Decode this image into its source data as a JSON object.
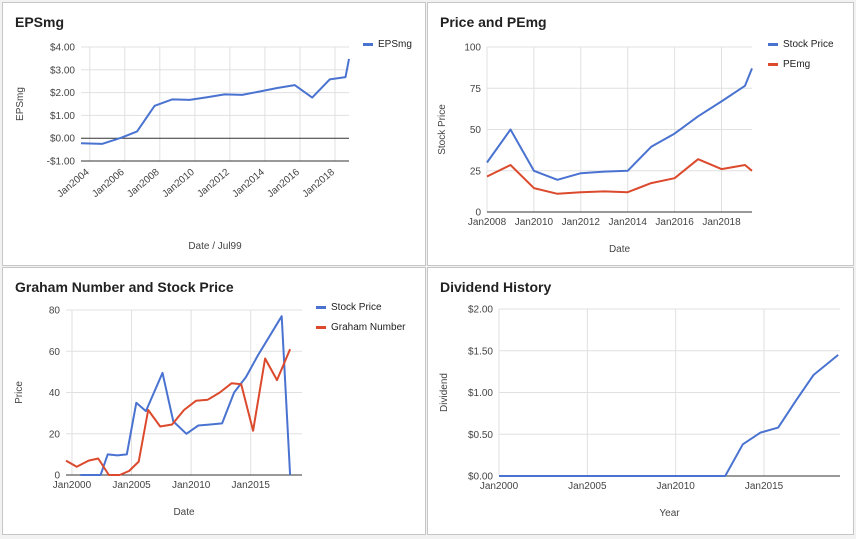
{
  "charts": [
    {
      "type": "line",
      "title": "EPSmg",
      "xlabel": "Date / Jul99",
      "ylabel": "EPSmg",
      "x_range": [
        2003.5,
        2018.8
      ],
      "ylim": [
        -1,
        4
      ],
      "x_ticks": [
        2004,
        2006,
        2008,
        2010,
        2012,
        2014,
        2016,
        2018
      ],
      "x_tick_labels": [
        "Jan2004",
        "Jan2006",
        "Jan2008",
        "Jan2010",
        "Jan2012",
        "Jan2014",
        "Jan2016",
        "Jan2018"
      ],
      "y_ticks": [
        -1,
        0,
        1,
        2,
        3,
        4
      ],
      "y_tick_labels": [
        "-$1.00",
        "$0.00",
        "$1.00",
        "$2.00",
        "$3.00",
        "$4.00"
      ],
      "zero_line": true,
      "legend": "right",
      "series": [
        {
          "name": "EPSmg",
          "color": "#4a73d1",
          "points": [
            [
              2003.5,
              -0.22
            ],
            [
              2004.7,
              -0.25
            ],
            [
              2005.8,
              0.02
            ],
            [
              2006.7,
              0.3
            ],
            [
              2007.7,
              1.42
            ],
            [
              2008.7,
              1.7
            ],
            [
              2009.7,
              1.68
            ],
            [
              2010.7,
              1.8
            ],
            [
              2011.7,
              1.92
            ],
            [
              2012.7,
              1.9
            ],
            [
              2013.7,
              2.05
            ],
            [
              2014.7,
              2.2
            ],
            [
              2015.7,
              2.33
            ],
            [
              2016.7,
              1.78
            ],
            [
              2017.7,
              2.58
            ],
            [
              2018.6,
              2.68
            ],
            [
              2018.8,
              3.48
            ]
          ]
        }
      ]
    },
    {
      "type": "line",
      "title": "Price and PEmg",
      "xlabel": "Date",
      "ylabel": "Stock Price",
      "x_range": [
        2008,
        2019.3
      ],
      "ylim": [
        0,
        100
      ],
      "x_ticks": [
        2008,
        2010,
        2012,
        2014,
        2016,
        2018
      ],
      "x_tick_labels": [
        "Jan2008",
        "Jan2010",
        "Jan2012",
        "Jan2014",
        "Jan2016",
        "Jan2018"
      ],
      "y_ticks": [
        0,
        25,
        50,
        75,
        100
      ],
      "y_tick_labels": [
        "0",
        "25",
        "50",
        "75",
        "100"
      ],
      "legend": "right",
      "series": [
        {
          "name": "Stock Price",
          "color": "#4a73d1",
          "points": [
            [
              2008,
              30
            ],
            [
              2009,
              50
            ],
            [
              2010,
              25
            ],
            [
              2011,
              19.5
            ],
            [
              2012,
              23.5
            ],
            [
              2013,
              24.5
            ],
            [
              2014,
              25
            ],
            [
              2015,
              39.5
            ],
            [
              2016,
              47.5
            ],
            [
              2017,
              58
            ],
            [
              2018,
              67
            ],
            [
              2019,
              76.5
            ],
            [
              2019.3,
              87
            ]
          ]
        },
        {
          "name": "PEmg",
          "color": "#dc4a2d",
          "points": [
            [
              2008,
              21.5
            ],
            [
              2009,
              28.5
            ],
            [
              2010,
              14.5
            ],
            [
              2011,
              11
            ],
            [
              2012,
              12
            ],
            [
              2013,
              12.5
            ],
            [
              2014,
              12
            ],
            [
              2015,
              17.5
            ],
            [
              2016,
              20.5
            ],
            [
              2017,
              32
            ],
            [
              2018,
              26
            ],
            [
              2019,
              28.5
            ],
            [
              2019.3,
              25
            ]
          ]
        }
      ]
    },
    {
      "type": "line",
      "title": "Graham Number and Stock Price",
      "xlabel": "Date",
      "ylabel": "Price",
      "x_range": [
        1999.5,
        2019.3
      ],
      "ylim": [
        0,
        80
      ],
      "x_ticks": [
        2000,
        2005,
        2010,
        2015
      ],
      "x_tick_labels": [
        "Jan2000",
        "Jan2005",
        "Jan2010",
        "Jan2015"
      ],
      "y_ticks": [
        0,
        20,
        40,
        60,
        80
      ],
      "y_tick_labels": [
        "0",
        "20",
        "40",
        "60",
        "80"
      ],
      "legend": "right",
      "series": [
        {
          "name": "Stock Price",
          "color": "#4a73d1",
          "points": [
            [
              2000.7,
              0
            ],
            [
              2002.4,
              0
            ],
            [
              2003.0,
              10
            ],
            [
              2003.8,
              9.5
            ],
            [
              2004.6,
              10
            ],
            [
              2005.4,
              35
            ],
            [
              2006.2,
              31
            ],
            [
              2007.6,
              49.5
            ],
            [
              2008.5,
              26
            ],
            [
              2009.6,
              20
            ],
            [
              2010.6,
              24
            ],
            [
              2011.6,
              24.5
            ],
            [
              2012.6,
              25
            ],
            [
              2013.6,
              40
            ],
            [
              2014.6,
              47.5
            ],
            [
              2015.6,
              58
            ],
            [
              2016.6,
              67.5
            ],
            [
              2017.6,
              77
            ],
            [
              2018.3,
              0
            ]
          ]
        },
        {
          "name": "Graham Number",
          "color": "#dc4a2d",
          "points": [
            [
              1999.5,
              7
            ],
            [
              2000.4,
              4
            ],
            [
              2001.4,
              7
            ],
            [
              2002.2,
              8
            ],
            [
              2003.1,
              0
            ],
            [
              2004.0,
              0
            ],
            [
              2004.8,
              2
            ],
            [
              2005.6,
              6.5
            ],
            [
              2006.4,
              31.5
            ],
            [
              2007.4,
              23.5
            ],
            [
              2008.4,
              24.5
            ],
            [
              2009.4,
              31.5
            ],
            [
              2010.4,
              36
            ],
            [
              2011.4,
              36.5
            ],
            [
              2012.4,
              40
            ],
            [
              2013.4,
              44.5
            ],
            [
              2014.2,
              44
            ],
            [
              2015.2,
              21.5
            ],
            [
              2016.2,
              56.5
            ],
            [
              2017.2,
              46
            ],
            [
              2018.3,
              61
            ]
          ]
        }
      ]
    },
    {
      "type": "line",
      "title": "Dividend History",
      "xlabel": "Year",
      "ylabel": "Dividend",
      "x_range": [
        2000,
        2019.3
      ],
      "ylim": [
        0,
        2
      ],
      "x_ticks": [
        2000,
        2005,
        2010,
        2015
      ],
      "x_tick_labels": [
        "Jan2000",
        "Jan2005",
        "Jan2010",
        "Jan2015"
      ],
      "y_ticks": [
        0,
        0.5,
        1,
        1.5,
        2
      ],
      "y_tick_labels": [
        "$0.00",
        "$0.50",
        "$1.00",
        "$1.50",
        "$2.00"
      ],
      "legend": "none",
      "series": [
        {
          "name": "",
          "color": "#4a73d1",
          "points": [
            [
              2000,
              0
            ],
            [
              2012.8,
              0
            ],
            [
              2013.8,
              0.38
            ],
            [
              2014.8,
              0.52
            ],
            [
              2015.8,
              0.58
            ],
            [
              2016.8,
              0.9
            ],
            [
              2017.8,
              1.21
            ],
            [
              2019.2,
              1.45
            ]
          ]
        }
      ]
    }
  ]
}
